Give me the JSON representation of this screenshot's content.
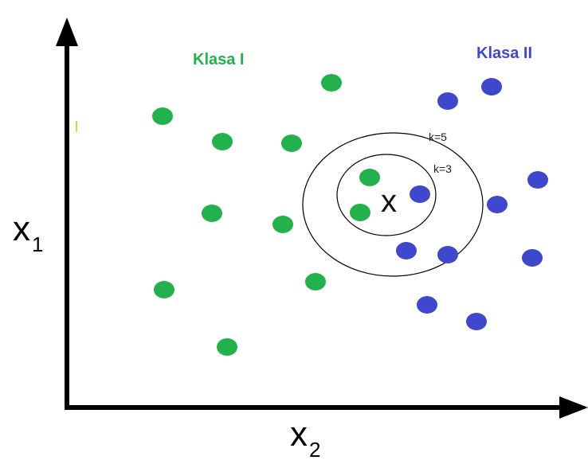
{
  "labels": {
    "class1": "Klasa I",
    "class2": "Klasa II",
    "k5": "k=5",
    "k3": "k=3",
    "query": "x",
    "y_axis_main": "x",
    "y_axis_sub": "1",
    "x_axis_main": "x",
    "x_axis_sub": "2"
  },
  "colors": {
    "class1": "#22b14c",
    "class2": "#3f48cc",
    "axis": "#000000",
    "ring": "#000000"
  },
  "points": {
    "class1": [],
    "class2": []
  },
  "query_point": {},
  "rings": []
}
